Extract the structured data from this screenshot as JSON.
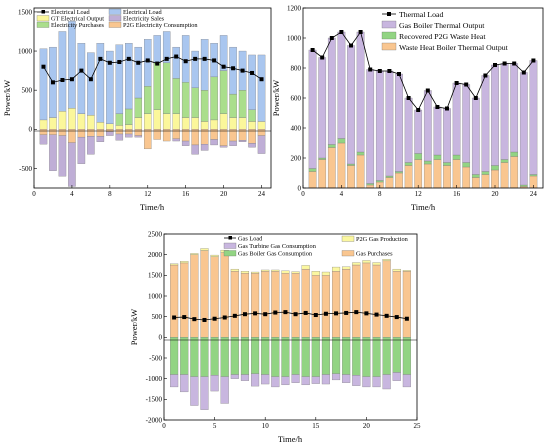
{
  "colors": {
    "electrical_load": "#000000",
    "gt_electrical_output": "#fbf79b",
    "electricity_purchases": "#aade8c",
    "electricity_sales": "#bfaed6",
    "p2g_electricity": "#f9c690",
    "grid_output": "#a9c6ef",
    "thermal_load": "#000000",
    "gas_boiler_thermal": "#c8b6df",
    "recovered_p2g_heat": "#92d483",
    "waste_heat_boiler": "#f9c690",
    "gas_load": "#000000",
    "gt_gas_consumption": "#c8b6df",
    "gas_boiler_gas": "#92d483",
    "p2g_gas_production": "#fbf7a0",
    "gas_purchases": "#f9c690"
  },
  "chart_data": [
    {
      "type": "bar",
      "panel": "electricity",
      "xlabel": "Time/h",
      "ylabel": "Power/kW",
      "xlim": [
        0,
        25
      ],
      "ylim": [
        -750,
        1550
      ],
      "xticks": [
        "0",
        "4",
        "8",
        "12",
        "16",
        "20",
        "24"
      ],
      "yticks": [
        "-500",
        "0",
        "500",
        "1000",
        "1500"
      ],
      "legend_placement": "top-left",
      "x": [
        1,
        2,
        3,
        4,
        5,
        6,
        7,
        8,
        9,
        10,
        11,
        12,
        13,
        14,
        15,
        16,
        17,
        18,
        19,
        20,
        21,
        22,
        23,
        24
      ],
      "line_series": {
        "name": "Electrical Load",
        "values": [
          800,
          600,
          630,
          640,
          750,
          640,
          900,
          850,
          860,
          900,
          850,
          880,
          840,
          900,
          930,
          870,
          900,
          900,
          880,
          800,
          780,
          750,
          720,
          640
        ]
      },
      "series": [
        {
          "name": "GT Electrical Output",
          "values": [
            120,
            150,
            230,
            270,
            200,
            180,
            90,
            70,
            50,
            60,
            150,
            200,
            250,
            200,
            200,
            150,
            150,
            100,
            120,
            200,
            150,
            150,
            100,
            100
          ]
        },
        {
          "name": "Electricity Purchases",
          "values": [
            0,
            0,
            0,
            0,
            0,
            0,
            0,
            0,
            150,
            200,
            250,
            350,
            600,
            650,
            450,
            450,
            380,
            400,
            550,
            550,
            300,
            350,
            150,
            0
          ]
        },
        {
          "name": "Electrical Load",
          "values": [
            1030,
            1050,
            1250,
            1380,
            1100,
            980,
            1100,
            1000,
            1080,
            1100,
            1050,
            1150,
            1200,
            1250,
            1050,
            1200,
            1000,
            1150,
            1100,
            1200,
            1050,
            1000,
            950,
            950
          ]
        },
        {
          "name": "Electricity Sales",
          "values": [
            -120,
            -460,
            -520,
            -560,
            -340,
            -230,
            -70,
            -50,
            -80,
            -40,
            -20,
            0,
            0,
            0,
            -30,
            -60,
            -120,
            -80,
            -70,
            -20,
            -60,
            -20,
            -50,
            -230
          ]
        },
        {
          "name": "P2G Electricity Consumption",
          "values": [
            -70,
            -70,
            -80,
            -170,
            -100,
            -90,
            -90,
            -30,
            -60,
            -60,
            -80,
            -250,
            -130,
            -150,
            -120,
            -150,
            -200,
            -190,
            -130,
            -210,
            -150,
            -140,
            -180,
            -80
          ]
        }
      ]
    },
    {
      "type": "bar",
      "panel": "thermal",
      "xlabel": "Time/h",
      "ylabel": "Power/kW",
      "xlim": [
        0,
        25
      ],
      "ylim": [
        0,
        1200
      ],
      "xticks": [
        "0",
        "4",
        "8",
        "12",
        "16",
        "20",
        "24"
      ],
      "yticks": [
        "0",
        "200",
        "400",
        "600",
        "800",
        "1000",
        "1200"
      ],
      "legend_placement": "top-left",
      "x": [
        1,
        2,
        3,
        4,
        5,
        6,
        7,
        8,
        9,
        10,
        11,
        12,
        13,
        14,
        15,
        16,
        17,
        18,
        19,
        20,
        21,
        22,
        23,
        24
      ],
      "line_series": {
        "name": "Thermal Load",
        "values": [
          920,
          870,
          1000,
          1040,
          950,
          1040,
          790,
          780,
          780,
          760,
          600,
          520,
          650,
          540,
          530,
          700,
          690,
          600,
          750,
          820,
          830,
          830,
          770,
          850
        ]
      },
      "series": [
        {
          "name": "Waste Heat Boiler Thermal Output",
          "values": [
            110,
            190,
            270,
            300,
            150,
            220,
            20,
            40,
            70,
            100,
            150,
            190,
            160,
            190,
            150,
            190,
            140,
            70,
            90,
            120,
            170,
            210,
            10,
            80
          ]
        },
        {
          "name": "Recovered P2G Waste Heat",
          "values": [
            20,
            10,
            20,
            30,
            10,
            20,
            10,
            10,
            10,
            10,
            20,
            40,
            20,
            30,
            20,
            30,
            30,
            20,
            20,
            30,
            20,
            30,
            10,
            10
          ]
        },
        {
          "name": "Gas Boiler Thermal Output",
          "values": [
            790,
            670,
            710,
            710,
            790,
            800,
            760,
            730,
            700,
            650,
            430,
            290,
            470,
            320,
            360,
            480,
            520,
            510,
            640,
            670,
            640,
            590,
            750,
            760
          ]
        }
      ]
    },
    {
      "type": "bar",
      "panel": "gas",
      "xlabel": "Time/h",
      "ylabel": "Power/kW",
      "xlim": [
        0,
        25
      ],
      "ylim": [
        -2000,
        2500
      ],
      "xticks": [
        "0",
        "5",
        "10",
        "15",
        "20",
        "25"
      ],
      "yticks": [
        "-2000",
        "-1500",
        "-1000",
        "-500",
        "0",
        "500",
        "1000",
        "1500",
        "2000",
        "2500"
      ],
      "legend_placement": "top",
      "x": [
        1,
        2,
        3,
        4,
        5,
        6,
        7,
        8,
        9,
        10,
        11,
        12,
        13,
        14,
        15,
        16,
        17,
        18,
        19,
        20,
        21,
        22,
        23,
        24
      ],
      "line_series": {
        "name": "Gas Load",
        "values": [
          480,
          490,
          440,
          420,
          450,
          480,
          520,
          560,
          580,
          560,
          600,
          610,
          560,
          590,
          540,
          570,
          580,
          590,
          610,
          580,
          550,
          520,
          490,
          450
        ]
      },
      "series": [
        {
          "name": "Gas Purchases",
          "values": [
            1750,
            1800,
            2000,
            2100,
            1950,
            2050,
            1600,
            1550,
            1550,
            1600,
            1600,
            1550,
            1550,
            1650,
            1500,
            1500,
            1600,
            1650,
            1750,
            1800,
            1750,
            1850,
            1600,
            1600
          ]
        },
        {
          "name": "P2G Gas Production",
          "values": [
            30,
            40,
            30,
            50,
            40,
            60,
            50,
            50,
            30,
            30,
            30,
            60,
            40,
            90,
            100,
            80,
            100,
            60,
            60,
            60,
            60,
            40,
            50,
            20
          ]
        },
        {
          "name": "Gas Boiler Gas Consumption",
          "values": [
            -900,
            -900,
            -950,
            -950,
            -920,
            -950,
            -900,
            -900,
            -880,
            -900,
            -950,
            -950,
            -900,
            -950,
            -950,
            -900,
            -880,
            -900,
            -920,
            -950,
            -950,
            -900,
            -850,
            -900
          ]
        },
        {
          "name": "Gas Turbine Gas Consumption",
          "values": [
            -300,
            -420,
            -700,
            -800,
            -380,
            -650,
            -100,
            -150,
            -300,
            -230,
            -250,
            -200,
            -200,
            -200,
            -170,
            -230,
            -150,
            -200,
            -250,
            -250,
            -250,
            -350,
            -200,
            -300
          ]
        }
      ]
    }
  ]
}
